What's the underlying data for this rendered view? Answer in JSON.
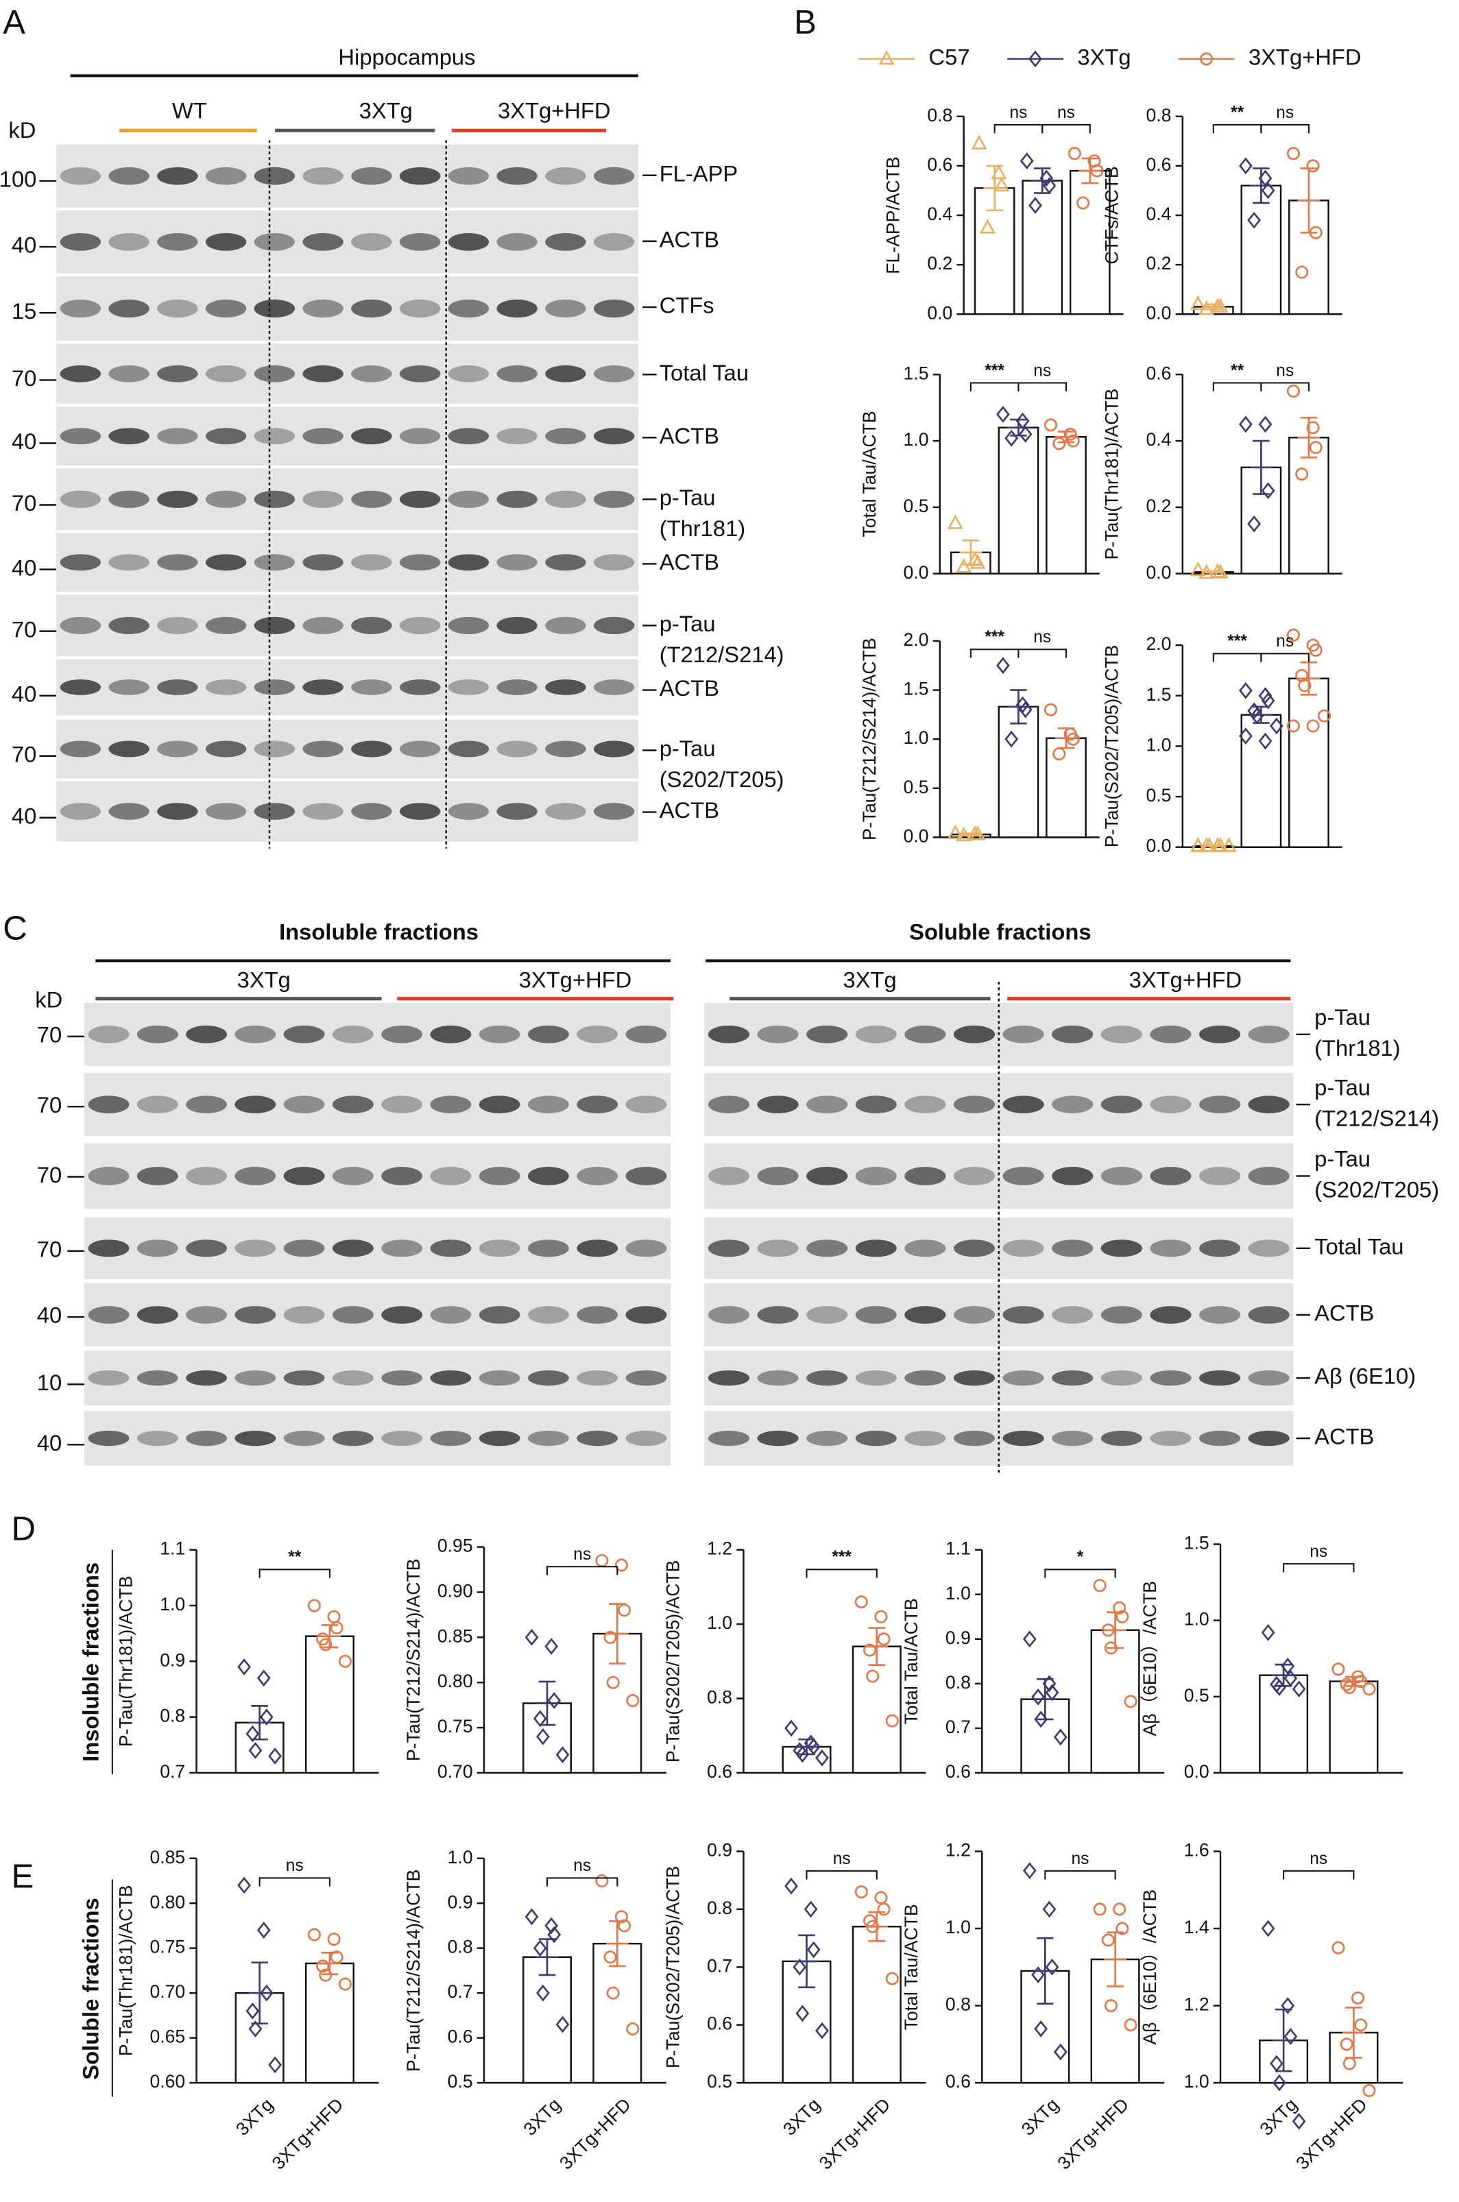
{
  "panels": [
    "A",
    "B",
    "C",
    "D",
    "E"
  ],
  "side_labels": [
    "Insoluble fractions",
    "Soluble fractions"
  ],
  "legend": [
    {
      "name": "C57",
      "color": "#e8b060",
      "marker": "triangle"
    },
    {
      "name": "3XTg",
      "color": "#3b3b70",
      "marker": "diamond"
    },
    {
      "name": "3XTg+HFD",
      "color": "#e0784a",
      "marker": "circle"
    }
  ],
  "blots": {
    "A": {
      "unit": "kD",
      "title": "Hippocampus",
      "groups": [
        "WT",
        "3XTg",
        "3XTg+HFD"
      ],
      "rows": [
        {
          "kd": 100,
          "label": [
            "FL-APP"
          ]
        },
        {
          "kd": 40,
          "label": [
            "ACTB"
          ]
        },
        {
          "kd": 15,
          "label": [
            "CTFs"
          ]
        },
        {
          "kd": 70,
          "label": [
            "Total Tau"
          ]
        },
        {
          "kd": 40,
          "label": [
            "ACTB"
          ]
        },
        {
          "kd": 70,
          "label": [
            "p-Tau",
            "(Thr181)"
          ]
        },
        {
          "kd": 40,
          "label": [
            "ACTB"
          ]
        },
        {
          "kd": 70,
          "label": [
            "p-Tau",
            "(T212/S214)"
          ]
        },
        {
          "kd": 40,
          "label": [
            "ACTB"
          ]
        },
        {
          "kd": 70,
          "label": [
            "p-Tau",
            "(S202/T205)"
          ]
        },
        {
          "kd": 40,
          "label": [
            "ACTB"
          ]
        }
      ]
    },
    "C": {
      "unit": "kD",
      "titles": [
        "Insoluble fractions",
        "Soluble fractions"
      ],
      "groups": [
        "3XTg",
        "3XTg+HFD",
        "3XTg",
        "3XTg+HFD"
      ],
      "rows": [
        {
          "kd": 70,
          "label": [
            "p-Tau",
            "(Thr181)"
          ]
        },
        {
          "kd": 70,
          "label": [
            "p-Tau",
            "(T212/S214)"
          ]
        },
        {
          "kd": 70,
          "label": [
            "p-Tau",
            "(S202/T205)"
          ]
        },
        {
          "kd": 70,
          "label": [
            "Total Tau"
          ]
        },
        {
          "kd": 40,
          "label": [
            "ACTB"
          ]
        },
        {
          "kd": 10,
          "label": [
            "Aβ (6E10)"
          ]
        },
        {
          "kd": 40,
          "label": [
            "ACTB"
          ]
        }
      ]
    }
  },
  "chart_data": [
    {
      "type": "bar",
      "ylabel": "FL-APP/ACTB",
      "colors": [
        "#e8b060",
        "#3b3b70",
        "#e0784a"
      ],
      "markers": [
        "triangle",
        "diamond",
        "circle"
      ],
      "values": [
        0.51,
        0.54,
        0.58
      ],
      "errors": [
        0.09,
        0.05,
        0.05
      ],
      "points": [
        [
          0.69,
          0.57,
          0.52,
          0.35
        ],
        [
          0.62,
          0.55,
          0.52,
          0.44
        ],
        [
          0.65,
          0.62,
          0.58,
          0.45
        ]
      ],
      "ylim": [
        0,
        0.8
      ],
      "yticks": [
        {
          "value": 0,
          "label": "0.0"
        },
        0.2,
        0.4,
        0.6,
        0.8
      ],
      "comparisons": [
        {
          "from": 0,
          "to": 1,
          "label": "ns"
        },
        {
          "from": 1,
          "to": 2,
          "label": "ns"
        }
      ]
    },
    {
      "type": "bar",
      "ylabel": "CTFs/ACTB",
      "colors": [
        "#e8b060",
        "#3b3b70",
        "#e0784a"
      ],
      "markers": [
        "triangle",
        "diamond",
        "circle"
      ],
      "values": [
        0.03,
        0.52,
        0.46
      ],
      "errors": [
        0.01,
        0.07,
        0.13
      ],
      "points": [
        [
          0.04,
          0.03,
          0.03,
          0.02
        ],
        [
          0.6,
          0.55,
          0.5,
          0.38
        ],
        [
          0.65,
          0.6,
          0.33,
          0.17
        ]
      ],
      "ylim": [
        0,
        0.8
      ],
      "yticks": [
        {
          "value": 0,
          "label": "0.0"
        },
        0.2,
        0.4,
        0.6,
        0.8
      ],
      "comparisons": [
        {
          "from": 0,
          "to": 1,
          "label": "**"
        },
        {
          "from": 1,
          "to": 2,
          "label": "ns"
        }
      ]
    },
    {
      "type": "bar",
      "ylabel": "Total Tau/ACTB",
      "colors": [
        "#e8b060",
        "#3b3b70",
        "#e0784a"
      ],
      "markers": [
        "triangle",
        "diamond",
        "circle"
      ],
      "values": [
        0.16,
        1.1,
        1.03
      ],
      "errors": [
        0.09,
        0.06,
        0.04
      ],
      "points": [
        [
          0.38,
          0.1,
          0.08,
          0.05
        ],
        [
          1.2,
          1.15,
          1.05,
          1.02
        ],
        [
          1.12,
          1.05,
          1.0,
          0.98
        ]
      ],
      "ylim": [
        0,
        1.5
      ],
      "yticks": [
        {
          "value": 0,
          "label": "0.0"
        },
        0.5,
        {
          "value": 1,
          "label": "1.0"
        },
        1.5
      ],
      "comparisons": [
        {
          "from": 0,
          "to": 1,
          "label": "***"
        },
        {
          "from": 1,
          "to": 2,
          "label": "ns"
        }
      ]
    },
    {
      "type": "bar",
      "ylabel": "P-Tau(Thr181)/ACTB",
      "colors": [
        "#e8b060",
        "#3b3b70",
        "#e0784a"
      ],
      "markers": [
        "triangle",
        "diamond",
        "circle"
      ],
      "values": [
        0.005,
        0.32,
        0.41
      ],
      "errors": [
        0.002,
        0.08,
        0.06
      ],
      "points": [
        [
          0.01,
          0.005,
          0.003,
          0.002
        ],
        [
          0.45,
          0.45,
          0.25,
          0.15
        ],
        [
          0.55,
          0.44,
          0.38,
          0.3
        ]
      ],
      "ylim": [
        0,
        0.6
      ],
      "yticks": [
        {
          "value": 0,
          "label": "0.0"
        },
        0.2,
        0.4,
        0.6
      ],
      "comparisons": [
        {
          "from": 0,
          "to": 1,
          "label": "**"
        },
        {
          "from": 1,
          "to": 2,
          "label": "ns"
        }
      ]
    },
    {
      "type": "bar",
      "ylabel": "P-Tau(T212/S214)/ACTB",
      "colors": [
        "#e8b060",
        "#3b3b70",
        "#e0784a"
      ],
      "markers": [
        "triangle",
        "diamond",
        "circle"
      ],
      "values": [
        0.03,
        1.33,
        1.01
      ],
      "errors": [
        0.01,
        0.17,
        0.1
      ],
      "points": [
        [
          0.04,
          0.03,
          0.03,
          0.02
        ],
        [
          1.75,
          1.35,
          1.3,
          1.0
        ],
        [
          1.3,
          1.05,
          1.0,
          0.85
        ]
      ],
      "ylim": [
        0,
        2
      ],
      "yticks": [
        {
          "value": 0,
          "label": "0.0"
        },
        0.5,
        {
          "value": 1,
          "label": "1.0"
        },
        1.5,
        {
          "value": 2,
          "label": "2.0"
        }
      ],
      "comparisons": [
        {
          "from": 0,
          "to": 1,
          "label": "***"
        },
        {
          "from": 1,
          "to": 2,
          "label": "ns"
        }
      ]
    },
    {
      "type": "bar",
      "ylabel": "P-Tau(S202/T205)/ACTB",
      "colors": [
        "#e8b060",
        "#3b3b70",
        "#e0784a"
      ],
      "markers": [
        "triangle",
        "diamond",
        "circle"
      ],
      "values": [
        0.01,
        1.31,
        1.67
      ],
      "errors": [
        0.003,
        0.08,
        0.16
      ],
      "points": [
        [
          0.01,
          0.01,
          0.01,
          0.01,
          0.01,
          0.01,
          0.01,
          0.01
        ],
        [
          1.55,
          1.5,
          1.45,
          1.35,
          1.3,
          1.2,
          1.1,
          1.05
        ],
        [
          2.1,
          2.0,
          1.95,
          1.7,
          1.6,
          1.3,
          1.2,
          1.2
        ]
      ],
      "ylim": [
        0,
        2
      ],
      "yticks": [
        {
          "value": 0,
          "label": "0.0"
        },
        0.5,
        {
          "value": 1,
          "label": "1.0"
        },
        1.5,
        {
          "value": 2,
          "label": "2.0"
        }
      ],
      "comparisons": [
        {
          "from": 0,
          "to": 1,
          "label": "***"
        },
        {
          "from": 1,
          "to": 2,
          "label": "ns"
        }
      ]
    },
    {
      "type": "bar",
      "ylabel": "P-Tau(Thr181)/ACTB",
      "colors": [
        "#3b3b70",
        "#e0784a"
      ],
      "markers": [
        "diamond",
        "circle"
      ],
      "values": [
        0.79,
        0.945
      ],
      "errors": [
        0.03,
        0.02
      ],
      "points": [
        [
          0.89,
          0.87,
          0.8,
          0.77,
          0.74,
          0.73
        ],
        [
          1.0,
          0.98,
          0.96,
          0.94,
          0.93,
          0.9
        ]
      ],
      "ylim": [
        0.7,
        1.1
      ],
      "yticks": [
        0.7,
        0.8,
        0.9,
        {
          "value": 1,
          "label": "1.0"
        },
        1.1
      ],
      "comparisons": [
        {
          "from": 0,
          "to": 1,
          "label": "**"
        }
      ]
    },
    {
      "type": "bar",
      "ylabel": "P-Tau(T212/S214)/ACTB",
      "colors": [
        "#3b3b70",
        "#e0784a"
      ],
      "markers": [
        "diamond",
        "circle"
      ],
      "values": [
        0.777,
        0.854
      ],
      "errors": [
        0.024,
        0.033
      ],
      "points": [
        [
          0.85,
          0.84,
          0.78,
          0.76,
          0.74,
          0.72
        ],
        [
          0.935,
          0.93,
          0.88,
          0.85,
          0.8,
          0.78
        ]
      ],
      "ylim": [
        0.7,
        0.95
      ],
      "yticks": [
        {
          "value": 0.7,
          "label": "0.70"
        },
        0.75,
        {
          "value": 0.8,
          "label": "0.80"
        },
        0.85,
        {
          "value": 0.9,
          "label": "0.90"
        },
        0.95
      ],
      "comparisons": [
        {
          "from": 0,
          "to": 1,
          "label": "ns"
        }
      ]
    },
    {
      "type": "bar",
      "ylabel": "P-Tau(S202/T205)/ACTB",
      "colors": [
        "#3b3b70",
        "#e0784a"
      ],
      "markers": [
        "diamond",
        "circle"
      ],
      "values": [
        0.67,
        0.94
      ],
      "errors": [
        0.02,
        0.05
      ],
      "points": [
        [
          0.72,
          0.68,
          0.67,
          0.66,
          0.65,
          0.64
        ],
        [
          1.06,
          1.02,
          0.96,
          0.93,
          0.86,
          0.74
        ]
      ],
      "ylim": [
        0.6,
        1.2
      ],
      "yticks": [
        0.6,
        0.8,
        {
          "value": 1,
          "label": "1.0"
        },
        1.2
      ],
      "comparisons": [
        {
          "from": 0,
          "to": 1,
          "label": "***"
        }
      ]
    },
    {
      "type": "bar",
      "ylabel": "Total Tau/ACTB",
      "colors": [
        "#3b3b70",
        "#e0784a"
      ],
      "markers": [
        "diamond",
        "circle"
      ],
      "values": [
        0.765,
        0.92
      ],
      "errors": [
        0.045,
        0.04
      ],
      "points": [
        [
          0.9,
          0.8,
          0.78,
          0.77,
          0.72,
          0.68
        ],
        [
          1.02,
          0.97,
          0.95,
          0.92,
          0.88,
          0.76
        ]
      ],
      "ylim": [
        0.6,
        1.1
      ],
      "yticks": [
        0.6,
        0.7,
        0.8,
        0.9,
        {
          "value": 1,
          "label": "1.0"
        },
        1.1
      ],
      "comparisons": [
        {
          "from": 0,
          "to": 1,
          "label": "*"
        }
      ]
    },
    {
      "type": "bar",
      "ylabel": "Aβ（6E10）/ACTB",
      "colors": [
        "#3b3b70",
        "#e0784a"
      ],
      "markers": [
        "diamond",
        "circle"
      ],
      "values": [
        0.64,
        0.6
      ],
      "errors": [
        0.07,
        0.03
      ],
      "points": [
        [
          0.92,
          0.7,
          0.62,
          0.58,
          0.56,
          0.55
        ],
        [
          0.68,
          0.63,
          0.6,
          0.58,
          0.56,
          0.55
        ]
      ],
      "ylim": [
        0,
        1.5
      ],
      "yticks": [
        {
          "value": 0,
          "label": "0.0"
        },
        0.5,
        {
          "value": 1,
          "label": "1.0"
        },
        1.5
      ],
      "comparisons": [
        {
          "from": 0,
          "to": 1,
          "label": "ns"
        }
      ]
    },
    {
      "type": "bar",
      "ylabel": "P-Tau(Thr181)/ACTB",
      "colors": [
        "#3b3b70",
        "#e0784a"
      ],
      "markers": [
        "diamond",
        "circle"
      ],
      "categories": [
        "3XTg",
        "3XTg+HFD"
      ],
      "values": [
        0.7,
        0.733
      ],
      "errors": [
        0.034,
        0.012
      ],
      "points": [
        [
          0.82,
          0.77,
          0.7,
          0.68,
          0.66,
          0.62
        ],
        [
          0.765,
          0.76,
          0.74,
          0.73,
          0.72,
          0.71
        ]
      ],
      "ylim": [
        0.6,
        0.85
      ],
      "yticks": [
        {
          "value": 0.6,
          "label": "0.60"
        },
        0.65,
        {
          "value": 0.7,
          "label": "0.70"
        },
        0.75,
        {
          "value": 0.8,
          "label": "0.80"
        },
        0.85
      ],
      "comparisons": [
        {
          "from": 0,
          "to": 1,
          "label": "ns"
        }
      ]
    },
    {
      "type": "bar",
      "ylabel": "P-Tau(T212/S214)/ACTB",
      "colors": [
        "#3b3b70",
        "#e0784a"
      ],
      "markers": [
        "diamond",
        "circle"
      ],
      "categories": [
        "3XTg",
        "3XTg+HFD"
      ],
      "values": [
        0.78,
        0.81
      ],
      "errors": [
        0.04,
        0.05
      ],
      "points": [
        [
          0.87,
          0.85,
          0.83,
          0.8,
          0.7,
          0.63
        ],
        [
          0.95,
          0.87,
          0.85,
          0.78,
          0.7,
          0.62
        ]
      ],
      "ylim": [
        0.5,
        1
      ],
      "yticks": [
        0.5,
        0.6,
        0.7,
        0.8,
        0.9,
        {
          "value": 1,
          "label": "1.0"
        }
      ],
      "comparisons": [
        {
          "from": 0,
          "to": 1,
          "label": "ns"
        }
      ]
    },
    {
      "type": "bar",
      "ylabel": "P-Tau(S202/T205)/ACTB",
      "colors": [
        "#3b3b70",
        "#e0784a"
      ],
      "markers": [
        "diamond",
        "circle"
      ],
      "categories": [
        "3XTg",
        "3XTg+HFD"
      ],
      "values": [
        0.71,
        0.77
      ],
      "errors": [
        0.045,
        0.025
      ],
      "points": [
        [
          0.84,
          0.8,
          0.73,
          0.7,
          0.62,
          0.59
        ],
        [
          0.83,
          0.82,
          0.8,
          0.78,
          0.77,
          0.68
        ]
      ],
      "ylim": [
        0.5,
        0.9
      ],
      "yticks": [
        0.5,
        0.6,
        0.7,
        0.8,
        0.9
      ],
      "comparisons": [
        {
          "from": 0,
          "to": 1,
          "label": "ns"
        }
      ]
    },
    {
      "type": "bar",
      "ylabel": "Total Tau/ACTB",
      "colors": [
        "#3b3b70",
        "#e0784a"
      ],
      "markers": [
        "diamond",
        "circle"
      ],
      "categories": [
        "3XTg",
        "3XTg+HFD"
      ],
      "values": [
        0.89,
        0.92
      ],
      "errors": [
        0.085,
        0.07
      ],
      "points": [
        [
          1.15,
          1.05,
          0.9,
          0.88,
          0.74,
          0.68
        ],
        [
          1.05,
          1.05,
          1.0,
          0.97,
          0.8,
          0.75
        ]
      ],
      "ylim": [
        0.6,
        1.2
      ],
      "yticks": [
        0.6,
        0.8,
        {
          "value": 1,
          "label": "1.0"
        },
        1.2
      ],
      "comparisons": [
        {
          "from": 0,
          "to": 1,
          "label": "ns"
        }
      ]
    },
    {
      "type": "bar",
      "ylabel": "Aβ（6E10）/ACTB",
      "colors": [
        "#3b3b70",
        "#e0784a"
      ],
      "markers": [
        "diamond",
        "circle"
      ],
      "categories": [
        "3XTg",
        "3XTg+HFD"
      ],
      "values": [
        1.11,
        1.13
      ],
      "errors": [
        0.08,
        0.065
      ],
      "points": [
        [
          1.4,
          1.2,
          1.12,
          1.05,
          1.0,
          0.9
        ],
        [
          1.35,
          1.22,
          1.15,
          1.1,
          1.05,
          0.98
        ]
      ],
      "ylim": [
        1,
        1.6
      ],
      "yticks": [
        {
          "value": 1,
          "label": "1.0"
        },
        1.2,
        1.4,
        1.6
      ],
      "comparisons": [
        {
          "from": 0,
          "to": 1,
          "label": "ns"
        }
      ]
    }
  ]
}
